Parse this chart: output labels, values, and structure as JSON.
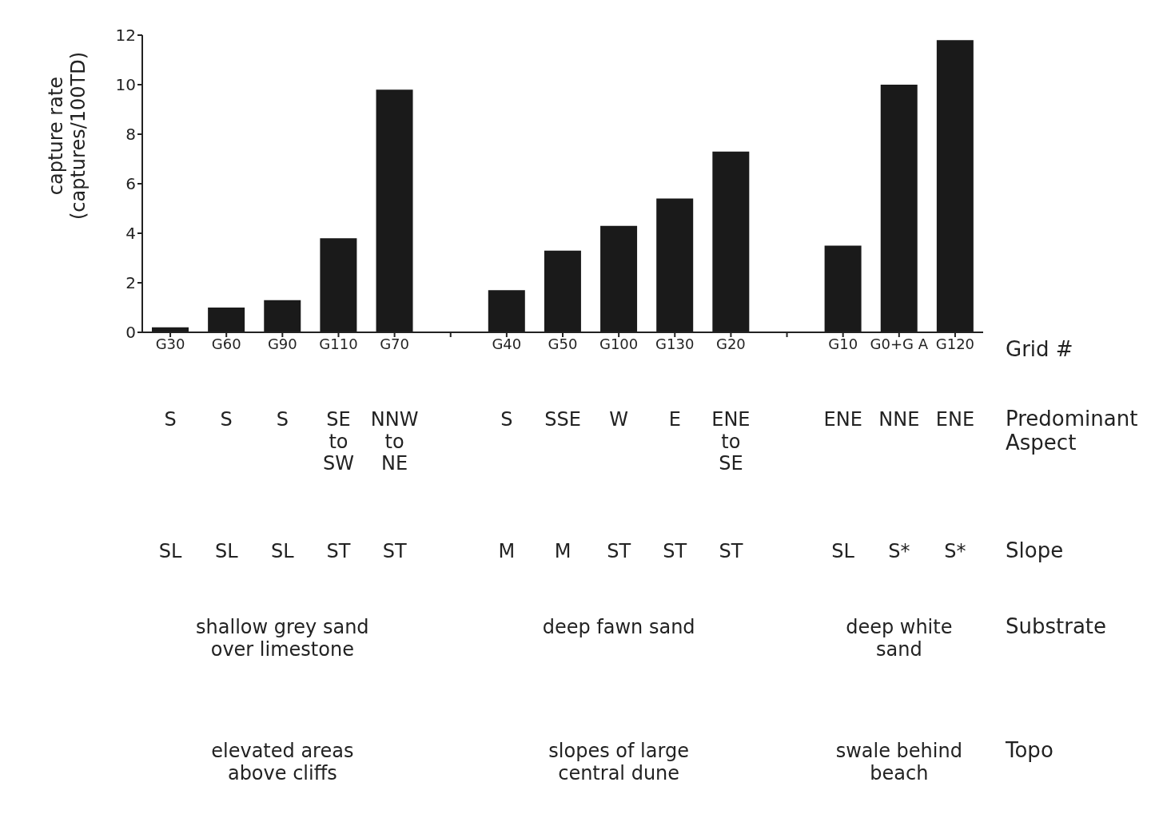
{
  "chart_data": {
    "type": "bar",
    "ylabel": "capture rate\n(captures/100TD)",
    "categories": [
      "G30",
      "G60",
      "G90",
      "G110",
      "G70",
      null,
      "G40",
      "G50",
      "G100",
      "G130",
      "G20",
      null,
      "G10",
      "G0+G A",
      "G120"
    ],
    "values": [
      0.2,
      1.0,
      1.3,
      3.8,
      9.8,
      null,
      1.7,
      3.3,
      4.3,
      5.4,
      7.3,
      null,
      3.5,
      10.0,
      11.8
    ],
    "color": "#1a1a1a",
    "ylim": [
      0,
      12
    ],
    "yticks": [
      0,
      2,
      4,
      6,
      8,
      10,
      12
    ],
    "annotations": [
      "Grid #",
      "Predominant\nAspect",
      "S",
      "S",
      "S",
      "SE\nto\nSW",
      "NNW\nto\nNE",
      "S",
      "SSE",
      "W",
      "E",
      "ENE\nto\nSE",
      "ENE",
      "NNE",
      "ENE",
      "Slope",
      "SL",
      "SL",
      "SL",
      "ST",
      "ST",
      "M",
      "M",
      "ST",
      "ST",
      "ST",
      "SL",
      "S*",
      "S*",
      "Substrate",
      "shallow grey sand\nover limestone",
      "deep fawn sand",
      "deep white\nsand",
      "Topo",
      "elevated areas\nabove cliffs",
      "slopes of large\ncentral dune",
      "swale behind\nbeach"
    ]
  }
}
